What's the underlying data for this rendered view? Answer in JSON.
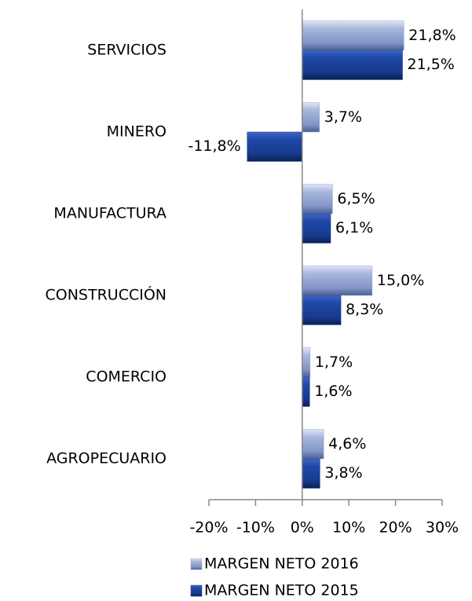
{
  "chart_data": {
    "type": "hbar",
    "categories": [
      "SERVICIOS",
      "MINERO",
      "MANUFACTURA",
      "CONSTRUCCIÓN",
      "COMERCIO",
      "AGROPECUARIO"
    ],
    "series": [
      {
        "name": "MARGEN NETO 2016",
        "color": "#8fa3cf",
        "values": [
          21.8,
          3.7,
          6.5,
          15.0,
          1.7,
          4.6
        ],
        "value_labels": [
          "21,8%",
          "3,7%",
          "6,5%",
          "15,0%",
          "1,7%",
          "4,6%"
        ]
      },
      {
        "name": "MARGEN NETO 2015",
        "color": "#1c3f94",
        "values": [
          21.5,
          -11.8,
          6.1,
          8.3,
          1.6,
          3.8
        ],
        "value_labels": [
          "21,5%",
          "-11,8%",
          "6,1%",
          "8,3%",
          "1,6%",
          "3,8%"
        ]
      }
    ],
    "xlim": [
      -20,
      30
    ],
    "xticks": [
      {
        "value": -20,
        "label": "-20%"
      },
      {
        "value": -10,
        "label": "-10%"
      },
      {
        "value": 0,
        "label": "0%"
      },
      {
        "value": 10,
        "label": "10%"
      },
      {
        "value": 20,
        "label": "20%"
      },
      {
        "value": 30,
        "label": "30%"
      }
    ],
    "negative_label_color": "#ff0000",
    "legend": "bottom"
  }
}
